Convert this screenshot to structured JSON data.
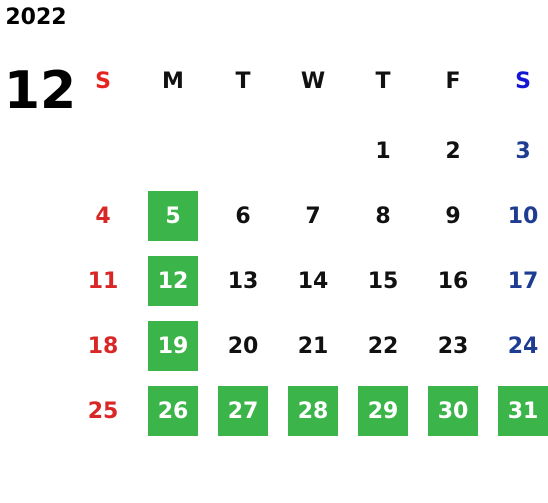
{
  "year": "2022",
  "month": "12",
  "weekdays": [
    {
      "label": "S",
      "color": "#e52421"
    },
    {
      "label": "M",
      "color": "#111111"
    },
    {
      "label": "T",
      "color": "#111111"
    },
    {
      "label": "W",
      "color": "#111111"
    },
    {
      "label": "T",
      "color": "#111111"
    },
    {
      "label": "F",
      "color": "#111111"
    },
    {
      "label": "S",
      "color": "#1515d6"
    }
  ],
  "day_colors": [
    "#d92626",
    "#111111",
    "#111111",
    "#111111",
    "#111111",
    "#111111",
    "#1e3c92"
  ],
  "highlight_color": "#3bb44a",
  "weeks": [
    [
      null,
      null,
      null,
      null,
      {
        "day": 1,
        "highlight": false
      },
      {
        "day": 2,
        "highlight": false
      },
      {
        "day": 3,
        "highlight": false
      }
    ],
    [
      {
        "day": 4,
        "highlight": false
      },
      {
        "day": 5,
        "highlight": true
      },
      {
        "day": 6,
        "highlight": false
      },
      {
        "day": 7,
        "highlight": false
      },
      {
        "day": 8,
        "highlight": false
      },
      {
        "day": 9,
        "highlight": false
      },
      {
        "day": 10,
        "highlight": false
      }
    ],
    [
      {
        "day": 11,
        "highlight": false
      },
      {
        "day": 12,
        "highlight": true
      },
      {
        "day": 13,
        "highlight": false
      },
      {
        "day": 14,
        "highlight": false
      },
      {
        "day": 15,
        "highlight": false
      },
      {
        "day": 16,
        "highlight": false
      },
      {
        "day": 17,
        "highlight": false
      }
    ],
    [
      {
        "day": 18,
        "highlight": false
      },
      {
        "day": 19,
        "highlight": true
      },
      {
        "day": 20,
        "highlight": false
      },
      {
        "day": 21,
        "highlight": false
      },
      {
        "day": 22,
        "highlight": false
      },
      {
        "day": 23,
        "highlight": false
      },
      {
        "day": 24,
        "highlight": false
      }
    ],
    [
      {
        "day": 25,
        "highlight": false
      },
      {
        "day": 26,
        "highlight": true
      },
      {
        "day": 27,
        "highlight": true
      },
      {
        "day": 28,
        "highlight": true
      },
      {
        "day": 29,
        "highlight": true
      },
      {
        "day": 30,
        "highlight": true
      },
      {
        "day": 31,
        "highlight": true
      }
    ]
  ]
}
